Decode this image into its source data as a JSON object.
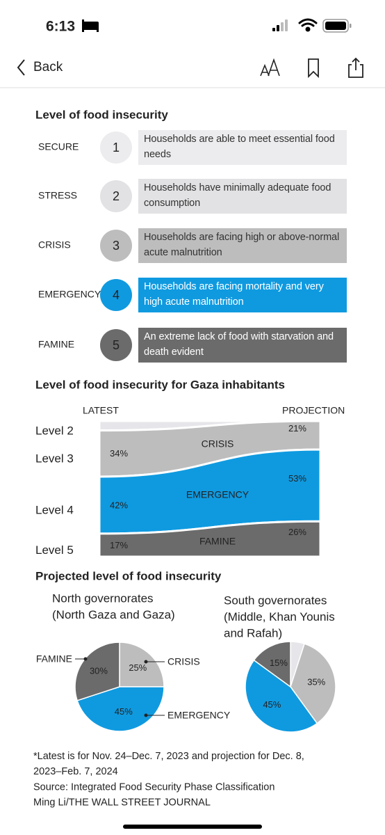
{
  "status_bar": {
    "time": "6:13"
  },
  "nav": {
    "back": "Back"
  },
  "levels": {
    "title": "Level of food insecurity",
    "items": [
      {
        "name": "SECURE",
        "number": 1,
        "description": "Households are able to meet essential food needs",
        "color": "#ececee"
      },
      {
        "name": "STRESS",
        "number": 2,
        "description": "Households have minimally adequate food consumption",
        "color": "#e2e2e4"
      },
      {
        "name": "CRISIS",
        "number": 3,
        "description": "Households are facing high or above-normal acute malnutrition",
        "color": "#bdbdbd"
      },
      {
        "name": "EMERGENCY",
        "number": 4,
        "description": "Households are facing mortality and very high acute malnutrition",
        "color": "#0f9ae0"
      },
      {
        "name": "FAMINE",
        "number": 5,
        "description": "An extreme lack of food with starvation and death evident",
        "color": "#6b6b6b"
      }
    ]
  },
  "chart_data": [
    {
      "type": "stacked-flow",
      "title": "Level of food insecurity for Gaza inhabitants",
      "categories": [
        "LATEST",
        "PROJECTION"
      ],
      "ylim": [
        0,
        100
      ],
      "series": [
        {
          "name": "Level 2",
          "color": "#e6e6ea",
          "values": [
            7,
            0
          ]
        },
        {
          "name": "Level 3",
          "label": "CRISIS",
          "color": "#bdbdbd",
          "values": [
            34,
            21
          ],
          "value_labels": [
            "34%",
            "21%"
          ]
        },
        {
          "name": "Level 4",
          "label": "EMERGENCY",
          "color": "#0f9ae0",
          "values": [
            42,
            53
          ],
          "value_labels": [
            "42%",
            "53%"
          ]
        },
        {
          "name": "Level 5",
          "label": "FAMINE",
          "color": "#6b6b6b",
          "values": [
            17,
            26
          ],
          "value_labels": [
            "17%",
            "26%"
          ]
        }
      ]
    },
    {
      "type": "pie",
      "title": [
        "North governorates",
        "(North Gaza and Gaza)"
      ],
      "categories": [
        "CRISIS",
        "EMERGENCY",
        "FAMINE"
      ],
      "values": [
        25,
        45,
        30
      ],
      "value_labels": [
        "25%",
        "45%",
        "30%"
      ],
      "colors": [
        "#bdbdbd",
        "#0f9ae0",
        "#6b6b6b"
      ]
    },
    {
      "type": "pie",
      "title": [
        "South governorates",
        "(Middle, Khan Younis",
        "and Rafah)"
      ],
      "categories": [
        null,
        null,
        null,
        null
      ],
      "values": [
        5,
        35,
        45,
        15
      ],
      "value_labels": [
        null,
        "35%",
        "45%",
        "15%"
      ],
      "colors": [
        "#e6e6ea",
        "#bdbdbd",
        "#0f9ae0",
        "#6b6b6b"
      ]
    }
  ],
  "pies_title": "Projected level of food insecurity",
  "footnote": [
    "*Latest is for Nov. 24–Dec. 7, 2023 and projection for Dec. 8,",
    "2023–Feb. 7, 2024",
    "Source: Integrated Food Security Phase Classification",
    "Ming Li/THE WALL STREET JOURNAL"
  ]
}
